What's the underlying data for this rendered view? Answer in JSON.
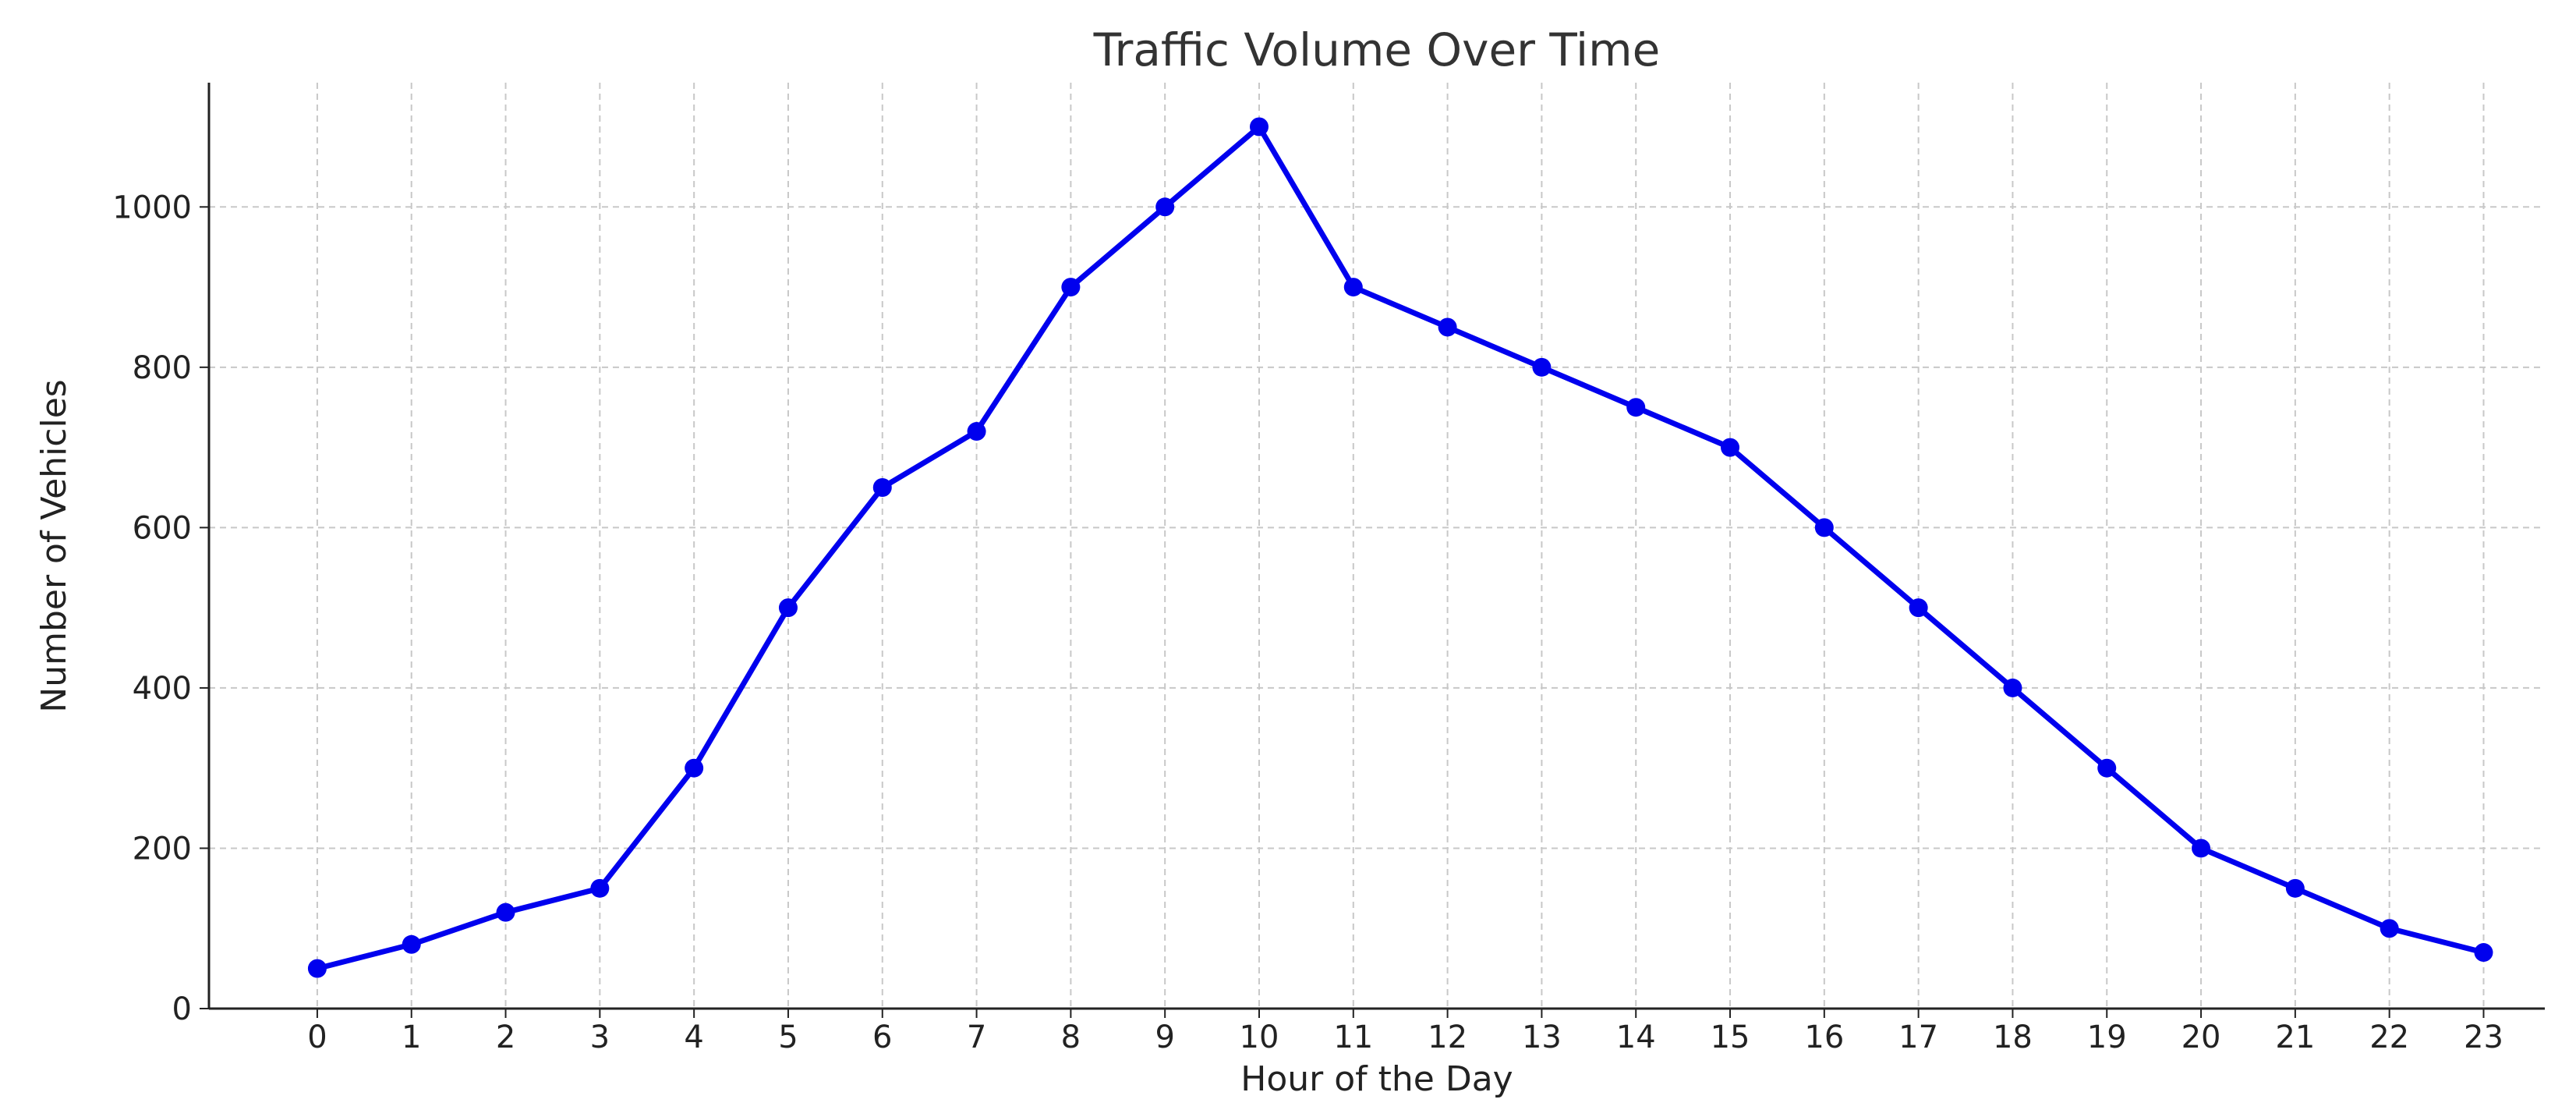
{
  "chart_data": {
    "type": "line",
    "title": "Traffic Volume Over Time",
    "xlabel": "Hour of the Day",
    "ylabel": "Number of Vehicles",
    "x": [
      0,
      1,
      2,
      3,
      4,
      5,
      6,
      7,
      8,
      9,
      10,
      11,
      12,
      13,
      14,
      15,
      16,
      17,
      18,
      19,
      20,
      21,
      22,
      23
    ],
    "x_ticks": [
      "0",
      "1",
      "2",
      "3",
      "4",
      "5",
      "6",
      "7",
      "8",
      "9",
      "10",
      "11",
      "12",
      "13",
      "14",
      "15",
      "16",
      "17",
      "18",
      "19",
      "20",
      "21",
      "22",
      "23"
    ],
    "xlim": [
      -1.15,
      23.65
    ],
    "series": [
      {
        "values": [
          50,
          80,
          120,
          150,
          300,
          500,
          650,
          720,
          900,
          1000,
          1100,
          900,
          850,
          800,
          750,
          700,
          600,
          500,
          400,
          300,
          200,
          150,
          100,
          70
        ],
        "color": "#0000ee",
        "marker": "circle"
      }
    ],
    "y_ticks": [
      0,
      200,
      400,
      600,
      800,
      1000
    ],
    "y_tick_labels": [
      "0",
      "200",
      "400",
      "600",
      "800",
      "1000"
    ],
    "ylim": [
      0,
      1155
    ],
    "grid": true,
    "grid_style": "dashed",
    "legend": false
  }
}
